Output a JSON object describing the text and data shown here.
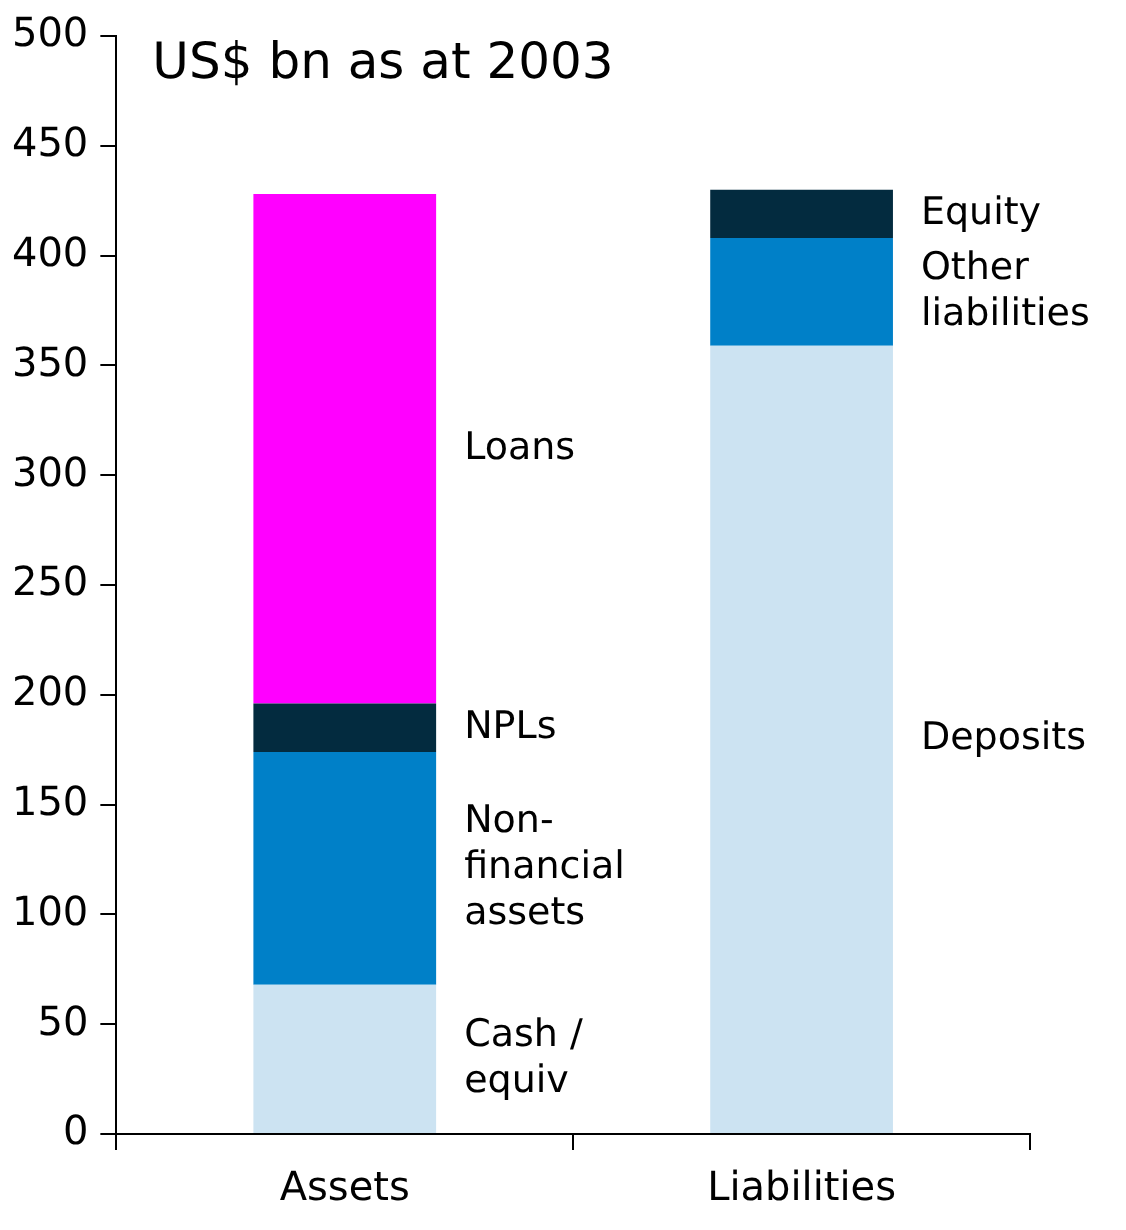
{
  "chart_data": {
    "type": "bar",
    "title": "US$ bn as at 2003",
    "categories": [
      "Assets",
      "Liabilities"
    ],
    "stacked": true,
    "ylim": [
      0,
      500
    ],
    "yticks": [
      0,
      50,
      100,
      150,
      200,
      250,
      300,
      350,
      400,
      450,
      500
    ],
    "grid": false,
    "legend": false,
    "series": [
      {
        "name": "Cash / equiv",
        "color": "#cce3f2",
        "values": [
          68,
          null
        ]
      },
      {
        "name": "Non-financial assets",
        "color": "#0080c8",
        "values": [
          106,
          null
        ]
      },
      {
        "name": "NPLs",
        "color": "#032b3f",
        "values": [
          22,
          null
        ]
      },
      {
        "name": "Loans",
        "color": "#ff00ff",
        "values": [
          232,
          null
        ]
      },
      {
        "name": "Deposits",
        "color": "#cce3f2",
        "values": [
          null,
          359
        ]
      },
      {
        "name": "Other liabilities",
        "color": "#0080c8",
        "values": [
          null,
          49
        ]
      },
      {
        "name": "Equity",
        "color": "#032b3f",
        "values": [
          null,
          22
        ]
      }
    ]
  }
}
